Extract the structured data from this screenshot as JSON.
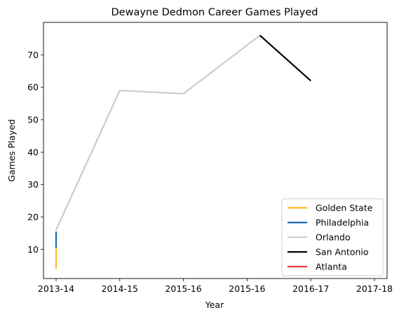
{
  "chart_data": {
    "type": "line",
    "title": "Dewayne Dedmon Career Games Played",
    "xlabel": "Year",
    "ylabel": "Games Played",
    "categories": [
      "2013-14",
      "2014-15",
      "2015-16",
      "2015-16",
      "2016-17",
      "2017-18"
    ],
    "ylim": [
      1,
      80
    ],
    "yticks": [
      10,
      20,
      30,
      40,
      50,
      60,
      70
    ],
    "grid": false,
    "legend_placement": "lower-right",
    "series": [
      {
        "name": "Golden State",
        "color": "#FDB927",
        "points": [
          [
            0,
            4
          ],
          [
            0,
            10.5
          ]
        ]
      },
      {
        "name": "Philadelphia",
        "color": "#1D6AAB",
        "points": [
          [
            0,
            10.5
          ],
          [
            0,
            15.5
          ]
        ]
      },
      {
        "name": "Orlando",
        "color": "#C4CED4",
        "points": [
          [
            0,
            16
          ],
          [
            1,
            59
          ],
          [
            2,
            58
          ],
          [
            3.2,
            76
          ]
        ]
      },
      {
        "name": "San Antonio",
        "color": "#000000",
        "points": [
          [
            3.2,
            76
          ],
          [
            4,
            62
          ]
        ]
      },
      {
        "name": "Atlanta",
        "color": "#E03A3E",
        "points": []
      }
    ]
  }
}
